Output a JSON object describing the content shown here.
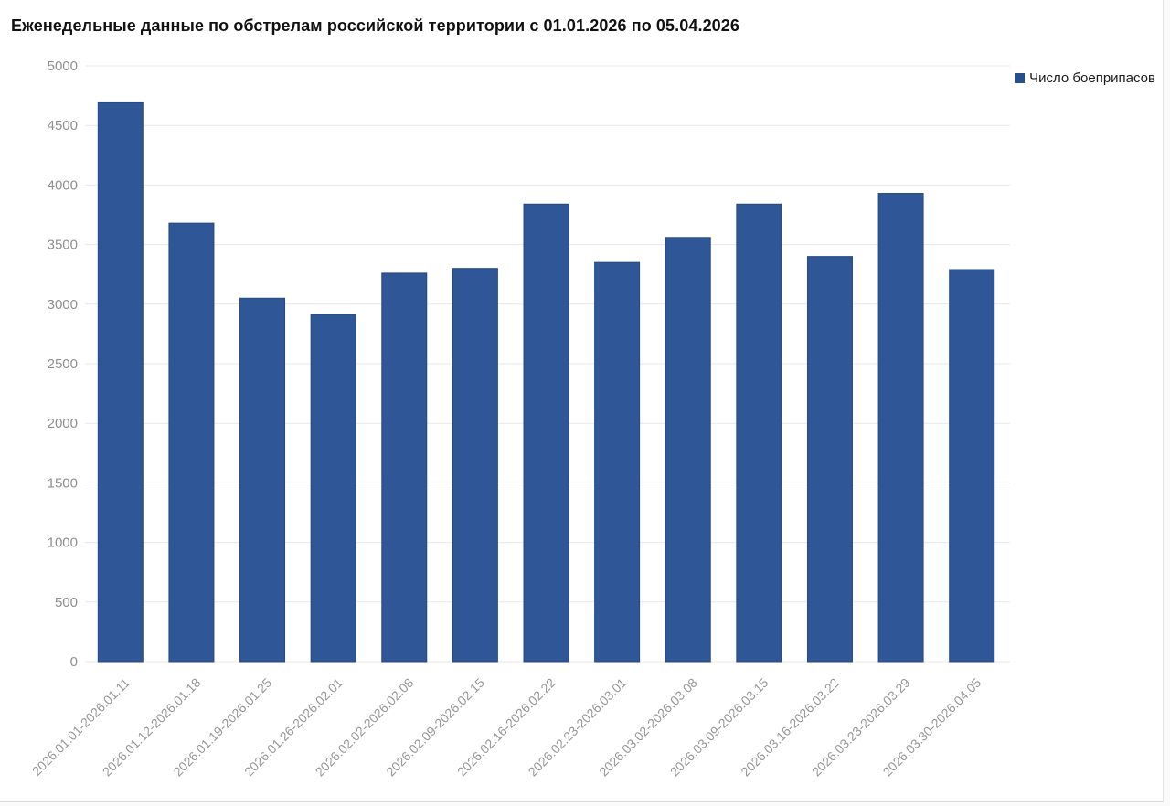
{
  "page": {
    "title": "Еженедельные данные по обстрелам российской территории с 01.01.2026 по 05.04.2026"
  },
  "legend": {
    "label": "Число боеприпасов",
    "marker_color": "#24508E"
  },
  "colors": {
    "bar": "#2F5697",
    "bar_border": "#26497F",
    "grid": "#e7e7e7",
    "axis_text": "#8f8f8f",
    "title_text": "#111111",
    "legend_text": "#1a1a1a",
    "background": "#ffffff"
  },
  "chart_data": {
    "type": "bar",
    "title": "Еженедельные данные по обстрелам российской территории с 01.01.2026 по 05.04.2026",
    "xlabel": "",
    "ylabel": "",
    "ylim": [
      0,
      5000
    ],
    "ytick_step": 500,
    "yticks": [
      0,
      500,
      1000,
      1500,
      2000,
      2500,
      3000,
      3500,
      4000,
      4500,
      5000
    ],
    "grid": true,
    "legend_position": "top-right",
    "categories": [
      "2026.01.01-2026.01.11",
      "2026.01.12-2026.01.18",
      "2026.01.19-2026.01.25",
      "2026.01.26-2026.02.01",
      "2026.02.02-2026.02.08",
      "2026.02.09-2026.02.15",
      "2026.02.16-2026.02.22",
      "2026.02.23-2026.03.01",
      "2026.03.02-2026.03.08",
      "2026.03.09-2026.03.15",
      "2026.03.16-2026.03.22",
      "2026.03.23-2026.03.29",
      "2026.03.30-2026.04.05"
    ],
    "series": [
      {
        "name": "Число боеприпасов",
        "values": [
          4690,
          3680,
          3050,
          2910,
          3260,
          3300,
          3840,
          3350,
          3560,
          3840,
          3400,
          3930,
          3290
        ]
      }
    ]
  }
}
